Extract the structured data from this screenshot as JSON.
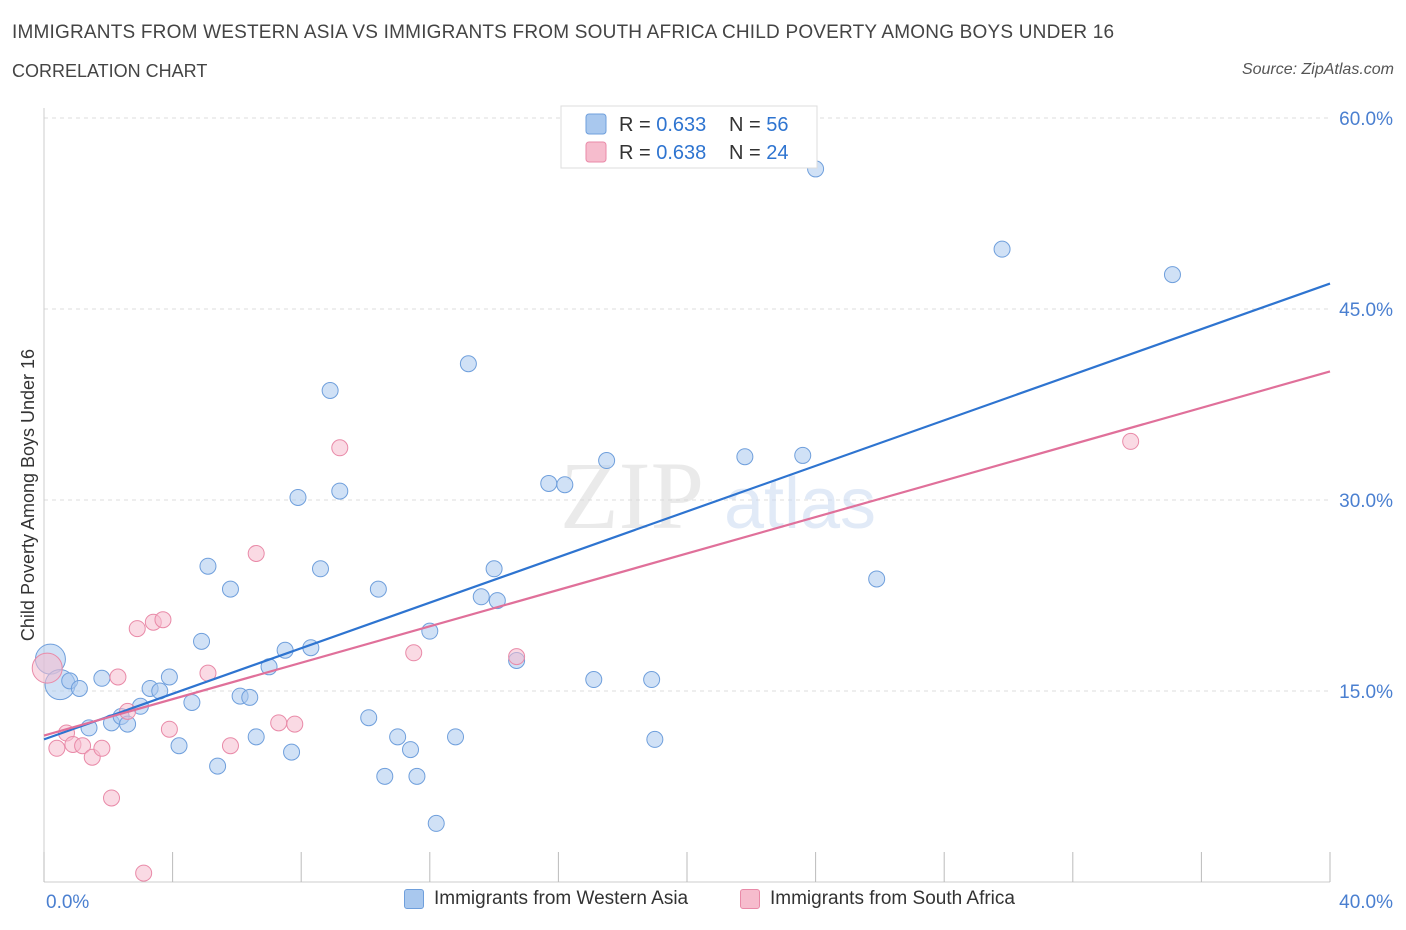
{
  "header": {
    "title": "IMMIGRANTS FROM WESTERN ASIA VS IMMIGRANTS FROM SOUTH AFRICA CHILD POVERTY AMONG BOYS UNDER 16",
    "subtitle": "CORRELATION CHART",
    "source": "Source: ZipAtlas.com"
  },
  "watermark": {
    "zip": "ZIP",
    "atlas": "atlas"
  },
  "colors": {
    "blue_fill": "#a9c8ee",
    "blue_stroke": "#6f9fdc",
    "blue_line": "#2e74d0",
    "pink_fill": "#f6bccd",
    "pink_stroke": "#e98aa8",
    "pink_line": "#e0709a",
    "axis_label": "#4a7fd0",
    "grid": "#dddddd"
  },
  "legend_top": [
    {
      "r_label": "R = ",
      "r_value": "0.633",
      "n_label": "N = ",
      "n_value": "56"
    },
    {
      "r_label": "R = ",
      "r_value": "0.638",
      "n_label": "N = ",
      "n_value": "24"
    }
  ],
  "legend_bottom": [
    {
      "label": "Immigrants from Western Asia"
    },
    {
      "label": "Immigrants from South Africa"
    }
  ],
  "chart_data": {
    "type": "scatter",
    "title": "IMMIGRANTS FROM WESTERN ASIA VS IMMIGRANTS FROM SOUTH AFRICA CHILD POVERTY AMONG BOYS UNDER 16",
    "xlabel": "",
    "ylabel": "Child Poverty Among Boys Under 16",
    "xlim": [
      0,
      40
    ],
    "ylim": [
      0,
      60
    ],
    "x_tick_labels": [
      "0.0%",
      "40.0%"
    ],
    "y_ticks": [
      15,
      30,
      45,
      60
    ],
    "y_tick_labels": [
      "15.0%",
      "30.0%",
      "45.0%",
      "60.0%"
    ],
    "grid": true,
    "series": [
      {
        "name": "Immigrants from Western Asia",
        "R": 0.633,
        "N": 56,
        "trend": {
          "x": [
            0,
            40
          ],
          "y": [
            11.2,
            47.0
          ]
        },
        "points": [
          {
            "x": 0.2,
            "y": 17.5,
            "big": true
          },
          {
            "x": 0.5,
            "y": 15.5,
            "big": true
          },
          {
            "x": 0.8,
            "y": 15.8
          },
          {
            "x": 1.1,
            "y": 15.2
          },
          {
            "x": 1.4,
            "y": 12.1
          },
          {
            "x": 1.8,
            "y": 16.0
          },
          {
            "x": 2.1,
            "y": 12.5
          },
          {
            "x": 2.4,
            "y": 13.0
          },
          {
            "x": 2.6,
            "y": 12.4
          },
          {
            "x": 3.0,
            "y": 13.8
          },
          {
            "x": 3.3,
            "y": 15.2
          },
          {
            "x": 3.6,
            "y": 15.0
          },
          {
            "x": 3.9,
            "y": 16.1
          },
          {
            "x": 4.2,
            "y": 10.7
          },
          {
            "x": 4.6,
            "y": 14.1
          },
          {
            "x": 4.9,
            "y": 18.9
          },
          {
            "x": 5.1,
            "y": 24.8
          },
          {
            "x": 5.4,
            "y": 9.1
          },
          {
            "x": 5.8,
            "y": 23.0
          },
          {
            "x": 6.1,
            "y": 14.6
          },
          {
            "x": 6.4,
            "y": 14.5
          },
          {
            "x": 6.6,
            "y": 11.4
          },
          {
            "x": 7.0,
            "y": 16.9
          },
          {
            "x": 7.5,
            "y": 18.2
          },
          {
            "x": 7.7,
            "y": 10.2
          },
          {
            "x": 7.9,
            "y": 30.2
          },
          {
            "x": 8.3,
            "y": 18.4
          },
          {
            "x": 8.6,
            "y": 24.6
          },
          {
            "x": 8.9,
            "y": 38.6
          },
          {
            "x": 9.2,
            "y": 30.7
          },
          {
            "x": 10.1,
            "y": 12.9
          },
          {
            "x": 10.4,
            "y": 23.0
          },
          {
            "x": 10.6,
            "y": 8.3
          },
          {
            "x": 11.0,
            "y": 11.4
          },
          {
            "x": 11.4,
            "y": 10.4
          },
          {
            "x": 11.6,
            "y": 8.3
          },
          {
            "x": 12.0,
            "y": 19.7
          },
          {
            "x": 12.2,
            "y": 4.6
          },
          {
            "x": 12.8,
            "y": 11.4
          },
          {
            "x": 13.2,
            "y": 40.7
          },
          {
            "x": 13.6,
            "y": 22.4
          },
          {
            "x": 14.0,
            "y": 24.6
          },
          {
            "x": 14.1,
            "y": 22.1
          },
          {
            "x": 14.7,
            "y": 17.4
          },
          {
            "x": 15.7,
            "y": 31.3
          },
          {
            "x": 16.2,
            "y": 31.2
          },
          {
            "x": 17.1,
            "y": 15.9
          },
          {
            "x": 17.5,
            "y": 33.1
          },
          {
            "x": 18.9,
            "y": 15.9
          },
          {
            "x": 19.0,
            "y": 11.2
          },
          {
            "x": 21.8,
            "y": 33.4
          },
          {
            "x": 23.6,
            "y": 33.5
          },
          {
            "x": 24.0,
            "y": 56.0
          },
          {
            "x": 25.9,
            "y": 23.8
          },
          {
            "x": 29.8,
            "y": 49.7
          },
          {
            "x": 35.1,
            "y": 47.7
          }
        ]
      },
      {
        "name": "Immigrants from South Africa",
        "R": 0.638,
        "N": 24,
        "trend": {
          "x": [
            0,
            40
          ],
          "y": [
            11.5,
            40.1
          ]
        },
        "points": [
          {
            "x": 0.1,
            "y": 16.8,
            "big": true
          },
          {
            "x": 0.4,
            "y": 10.5
          },
          {
            "x": 0.7,
            "y": 11.7
          },
          {
            "x": 0.9,
            "y": 10.8
          },
          {
            "x": 1.2,
            "y": 10.7
          },
          {
            "x": 1.5,
            "y": 9.8
          },
          {
            "x": 1.8,
            "y": 10.5
          },
          {
            "x": 2.1,
            "y": 6.6
          },
          {
            "x": 2.3,
            "y": 16.1
          },
          {
            "x": 2.6,
            "y": 13.4
          },
          {
            "x": 2.9,
            "y": 19.9
          },
          {
            "x": 3.1,
            "y": 0.7
          },
          {
            "x": 3.4,
            "y": 20.4
          },
          {
            "x": 3.7,
            "y": 20.6
          },
          {
            "x": 3.9,
            "y": 12.0
          },
          {
            "x": 5.1,
            "y": 16.4
          },
          {
            "x": 5.8,
            "y": 10.7
          },
          {
            "x": 6.6,
            "y": 25.8
          },
          {
            "x": 7.3,
            "y": 12.5
          },
          {
            "x": 7.8,
            "y": 12.4
          },
          {
            "x": 9.2,
            "y": 34.1
          },
          {
            "x": 11.5,
            "y": 18.0
          },
          {
            "x": 14.7,
            "y": 17.7
          },
          {
            "x": 33.8,
            "y": 34.6
          }
        ]
      }
    ]
  }
}
